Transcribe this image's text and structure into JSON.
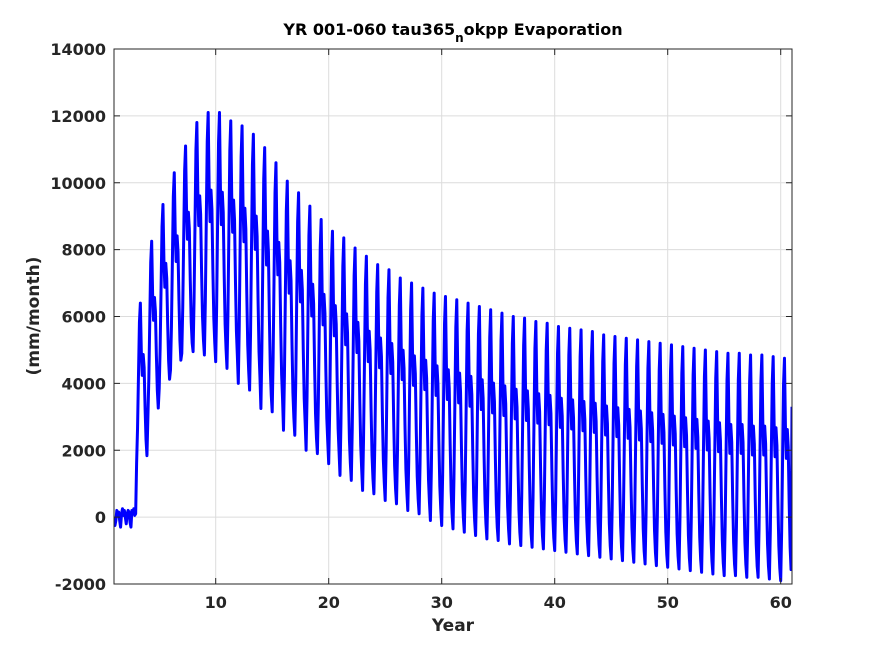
{
  "chart_data": {
    "type": "line",
    "title": {
      "prefix": "YR 001-060 tau365",
      "subscript": "n",
      "suffix": "okpp Evaporation"
    },
    "xlabel": "Year",
    "ylabel": "(mm/month)",
    "xlim": [
      1,
      61
    ],
    "ylim": [
      -2000,
      14000
    ],
    "xticks": [
      10,
      20,
      30,
      40,
      50,
      60
    ],
    "yticks": [
      -2000,
      0,
      2000,
      4000,
      6000,
      8000,
      10000,
      12000,
      14000
    ],
    "grid": true,
    "line_color": "#0000ff",
    "series": [
      {
        "samples_per_year": 12,
        "spinup": {
          "start_year": 1.0,
          "end_year": 3.0,
          "values": [
            0,
            -250,
            -100,
            200,
            50,
            150,
            -100,
            -300,
            100,
            250,
            50,
            200,
            0,
            -200,
            100,
            200,
            150,
            -150,
            -300,
            200,
            100,
            250,
            50,
            100
          ]
        },
        "cycles": [
          {
            "year": 3,
            "max": 6400,
            "min": 1600
          },
          {
            "year": 4,
            "max": 8250,
            "min": 3000
          },
          {
            "year": 5,
            "max": 9350,
            "min": 3850
          },
          {
            "year": 6,
            "max": 10300,
            "min": 4400
          },
          {
            "year": 7,
            "max": 11100,
            "min": 4900
          },
          {
            "year": 8,
            "max": 11800,
            "min": 4950
          },
          {
            "year": 9,
            "max": 12100,
            "min": 4850
          },
          {
            "year": 10,
            "max": 12100,
            "min": 4650
          },
          {
            "year": 11,
            "max": 11850,
            "min": 4450
          },
          {
            "year": 12,
            "max": 11700,
            "min": 4000
          },
          {
            "year": 13,
            "max": 11450,
            "min": 3800
          },
          {
            "year": 14,
            "max": 11050,
            "min": 3250
          },
          {
            "year": 15,
            "max": 10600,
            "min": 3150
          },
          {
            "year": 16,
            "max": 10050,
            "min": 2600
          },
          {
            "year": 17,
            "max": 9700,
            "min": 2450
          },
          {
            "year": 18,
            "max": 9300,
            "min": 2000
          },
          {
            "year": 19,
            "max": 8900,
            "min": 1900
          },
          {
            "year": 20,
            "max": 8550,
            "min": 1600
          },
          {
            "year": 21,
            "max": 8350,
            "min": 1250
          },
          {
            "year": 22,
            "max": 8050,
            "min": 1100
          },
          {
            "year": 23,
            "max": 7800,
            "min": 800
          },
          {
            "year": 24,
            "max": 7550,
            "min": 700
          },
          {
            "year": 25,
            "max": 7400,
            "min": 500
          },
          {
            "year": 26,
            "max": 7150,
            "min": 400
          },
          {
            "year": 27,
            "max": 7000,
            "min": 200
          },
          {
            "year": 28,
            "max": 6850,
            "min": 100
          },
          {
            "year": 29,
            "max": 6700,
            "min": -100
          },
          {
            "year": 30,
            "max": 6600,
            "min": -250
          },
          {
            "year": 31,
            "max": 6500,
            "min": -350
          },
          {
            "year": 32,
            "max": 6400,
            "min": -450
          },
          {
            "year": 33,
            "max": 6300,
            "min": -550
          },
          {
            "year": 34,
            "max": 6200,
            "min": -650
          },
          {
            "year": 35,
            "max": 6100,
            "min": -700
          },
          {
            "year": 36,
            "max": 6000,
            "min": -800
          },
          {
            "year": 37,
            "max": 5950,
            "min": -850
          },
          {
            "year": 38,
            "max": 5850,
            "min": -900
          },
          {
            "year": 39,
            "max": 5800,
            "min": -950
          },
          {
            "year": 40,
            "max": 5700,
            "min": -1000
          },
          {
            "year": 41,
            "max": 5650,
            "min": -1050
          },
          {
            "year": 42,
            "max": 5600,
            "min": -1100
          },
          {
            "year": 43,
            "max": 5550,
            "min": -1150
          },
          {
            "year": 44,
            "max": 5450,
            "min": -1200
          },
          {
            "year": 45,
            "max": 5400,
            "min": -1250
          },
          {
            "year": 46,
            "max": 5350,
            "min": -1300
          },
          {
            "year": 47,
            "max": 5300,
            "min": -1350
          },
          {
            "year": 48,
            "max": 5250,
            "min": -1400
          },
          {
            "year": 49,
            "max": 5200,
            "min": -1450
          },
          {
            "year": 50,
            "max": 5150,
            "min": -1500
          },
          {
            "year": 51,
            "max": 5100,
            "min": -1550
          },
          {
            "year": 52,
            "max": 5050,
            "min": -1600
          },
          {
            "year": 53,
            "max": 5000,
            "min": -1650
          },
          {
            "year": 54,
            "max": 4950,
            "min": -1700
          },
          {
            "year": 55,
            "max": 4900,
            "min": -1750
          },
          {
            "year": 56,
            "max": 4900,
            "min": -1750
          },
          {
            "year": 57,
            "max": 4850,
            "min": -1800
          },
          {
            "year": 58,
            "max": 4850,
            "min": -1800
          },
          {
            "year": 59,
            "max": 4800,
            "min": -1850
          },
          {
            "year": 60,
            "max": 4750,
            "min": -1900
          }
        ],
        "end": {
          "year": 61,
          "value": 3300
        }
      }
    ]
  }
}
